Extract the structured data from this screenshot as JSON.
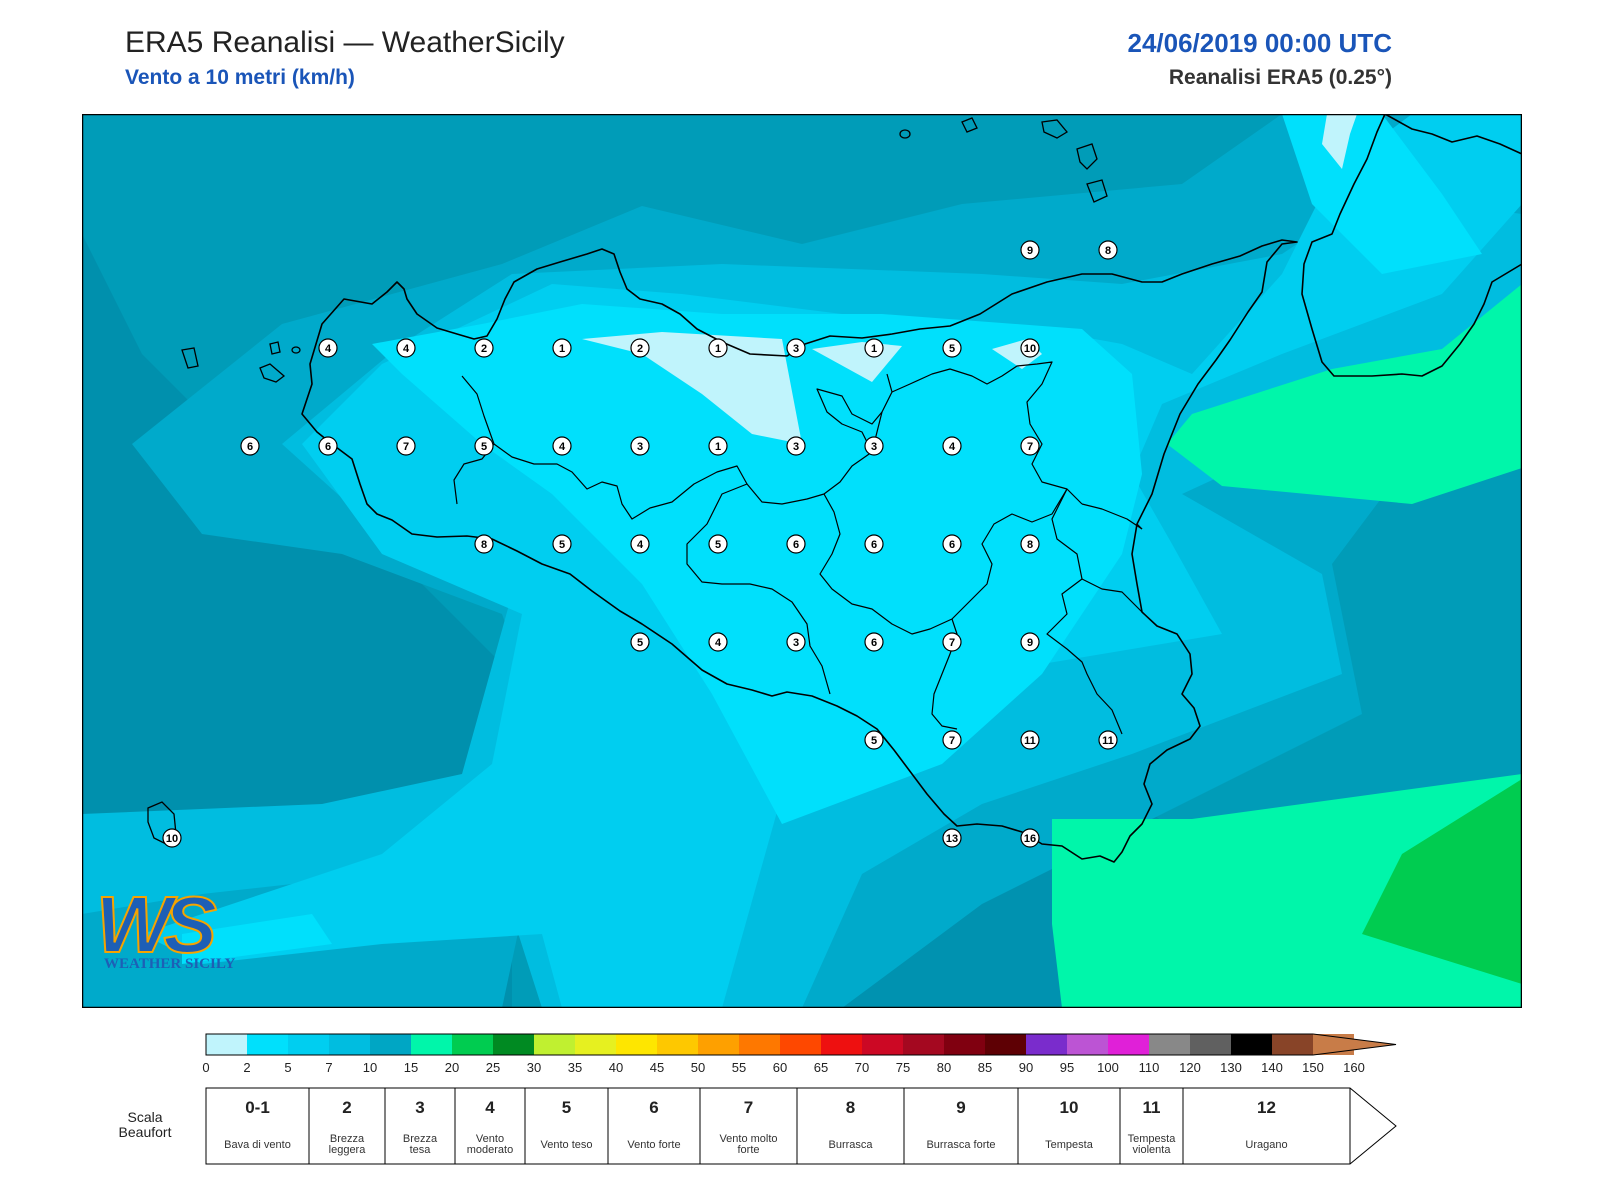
{
  "header": {
    "title": "ERA5 Reanalisi — WeatherSicily",
    "subtitle": "Vento a 10 metri (km/h)",
    "datetime": "24/06/2019 00:00 UTC",
    "source": "Reanalisi ERA5 (0.25°)"
  },
  "logo": {
    "text": "WS",
    "caption": "WEATHER SICILY"
  },
  "wind_points": [
    {
      "lon": 12.5,
      "lat": 38.0,
      "beaufort": 4
    },
    {
      "lon": 13.0,
      "lat": 38.0,
      "beaufort": 4
    },
    {
      "lon": 13.5,
      "lat": 38.0,
      "beaufort": 2
    },
    {
      "lon": 14.0,
      "lat": 38.0,
      "beaufort": 1
    },
    {
      "lon": 14.5,
      "lat": 38.0,
      "beaufort": 2
    },
    {
      "lon": 15.0,
      "lat": 38.0,
      "beaufort": 1
    },
    {
      "lon": 15.5,
      "lat": 38.0,
      "beaufort": 3
    },
    {
      "lon": 16.0,
      "lat": 38.0,
      "beaufort": 1
    },
    {
      "lon": 16.5,
      "lat": 38.0,
      "beaufort": 5
    },
    {
      "lon": 17.0,
      "lat": 38.0,
      "beaufort": 10
    },
    {
      "lon": 17.0,
      "lat": 38.5,
      "beaufort": 9
    },
    {
      "lon": 17.5,
      "lat": 38.5,
      "beaufort": 8
    },
    {
      "lon": 12.0,
      "lat": 37.5,
      "beaufort": 6
    },
    {
      "lon": 12.5,
      "lat": 37.5,
      "beaufort": 6
    },
    {
      "lon": 13.0,
      "lat": 37.5,
      "beaufort": 7
    },
    {
      "lon": 13.5,
      "lat": 37.5,
      "beaufort": 5
    },
    {
      "lon": 14.0,
      "lat": 37.5,
      "beaufort": 4
    },
    {
      "lon": 14.5,
      "lat": 37.5,
      "beaufort": 3
    },
    {
      "lon": 15.0,
      "lat": 37.5,
      "beaufort": 1
    },
    {
      "lon": 15.5,
      "lat": 37.5,
      "beaufort": 3
    },
    {
      "lon": 16.0,
      "lat": 37.5,
      "beaufort": 3
    },
    {
      "lon": 16.5,
      "lat": 37.5,
      "beaufort": 4
    },
    {
      "lon": 17.0,
      "lat": 37.5,
      "beaufort": 7
    },
    {
      "lon": 13.5,
      "lat": 37.0,
      "beaufort": 8
    },
    {
      "lon": 14.0,
      "lat": 37.0,
      "beaufort": 5
    },
    {
      "lon": 14.5,
      "lat": 37.0,
      "beaufort": 4
    },
    {
      "lon": 15.0,
      "lat": 37.0,
      "beaufort": 5
    },
    {
      "lon": 15.5,
      "lat": 37.0,
      "beaufort": 6
    },
    {
      "lon": 16.0,
      "lat": 37.0,
      "beaufort": 6
    },
    {
      "lon": 16.5,
      "lat": 37.0,
      "beaufort": 6
    },
    {
      "lon": 17.0,
      "lat": 37.0,
      "beaufort": 8
    },
    {
      "lon": 14.5,
      "lat": 36.5,
      "beaufort": 5
    },
    {
      "lon": 15.0,
      "lat": 36.5,
      "beaufort": 4
    },
    {
      "lon": 15.5,
      "lat": 36.5,
      "beaufort": 3
    },
    {
      "lon": 16.0,
      "lat": 36.5,
      "beaufort": 6
    },
    {
      "lon": 16.5,
      "lat": 36.5,
      "beaufort": 7
    },
    {
      "lon": 17.0,
      "lat": 36.5,
      "beaufort": 9
    },
    {
      "lon": 16.0,
      "lat": 36.0,
      "beaufort": 5
    },
    {
      "lon": 16.5,
      "lat": 36.0,
      "beaufort": 7
    },
    {
      "lon": 17.0,
      "lat": 36.0,
      "beaufort": 11
    },
    {
      "lon": 17.5,
      "lat": 36.0,
      "beaufort": 11
    },
    {
      "lon": 16.5,
      "lat": 35.5,
      "beaufort": 13
    },
    {
      "lon": 17.0,
      "lat": 35.5,
      "beaufort": 16
    },
    {
      "lon": 11.5,
      "lat": 35.5,
      "beaufort": 10
    }
  ],
  "colorbar": {
    "ticks": [
      0,
      2,
      5,
      7,
      10,
      15,
      20,
      25,
      30,
      35,
      40,
      45,
      50,
      55,
      60,
      65,
      70,
      75,
      80,
      85,
      90,
      95,
      100,
      110,
      120,
      130,
      140,
      150,
      160
    ],
    "colors": [
      "#c0f4fc",
      "#00e0fc",
      "#00cef0",
      "#00bde0",
      "#00a6c4",
      "#00f6aa",
      "#00cc50",
      "#008a22",
      "#c0f030",
      "#e6f020",
      "#fee600",
      "#fec800",
      "#fea000",
      "#fe7800",
      "#fe4800",
      "#ee1010",
      "#cc0824",
      "#a40820",
      "#800010",
      "#5e0004",
      "#7a2ccc",
      "#bc54d4",
      "#e020d8",
      "#888888",
      "#606060",
      "#000000",
      "#884428",
      "#c87c48"
    ]
  },
  "beaufort_caption": "Scala Beaufort",
  "beaufort_scale": [
    {
      "number": "0-1",
      "desc": "Bava di vento"
    },
    {
      "number": "2",
      "desc": "Brezza leggera"
    },
    {
      "number": "3",
      "desc": "Brezza tesa"
    },
    {
      "number": "4",
      "desc": "Vento moderato"
    },
    {
      "number": "5",
      "desc": "Vento teso"
    },
    {
      "number": "6",
      "desc": "Vento forte"
    },
    {
      "number": "7",
      "desc": "Vento molto forte"
    },
    {
      "number": "8",
      "desc": "Burrasca"
    },
    {
      "number": "9",
      "desc": "Burrasca forte"
    },
    {
      "number": "10",
      "desc": "Tempesta"
    },
    {
      "number": "11",
      "desc": "Tempesta violenta"
    },
    {
      "number": "12",
      "desc": "Uragano"
    }
  ]
}
